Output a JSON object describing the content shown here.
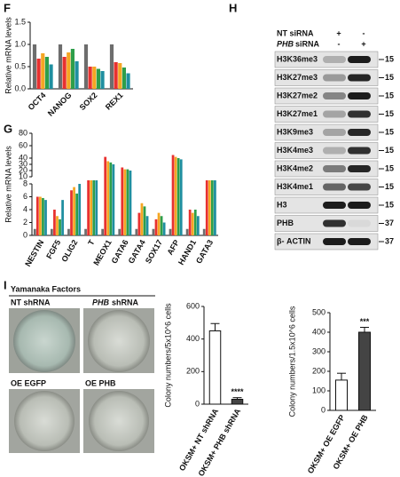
{
  "panel_labels": [
    "F",
    "G",
    "H",
    "I"
  ],
  "chart_data": [
    {
      "type": "bar",
      "y_label": "Relative mRNA levels",
      "categories": [
        "OCT4",
        "NANOG",
        "SOX2",
        "REX1"
      ],
      "series": [
        {
          "color": "#6d6d6d",
          "values": [
            1.0,
            1.0,
            1.0,
            1.0
          ]
        },
        {
          "color": "#e8312f",
          "values": [
            0.68,
            0.72,
            0.5,
            0.6
          ]
        },
        {
          "color": "#f5a623",
          "values": [
            0.8,
            0.82,
            0.5,
            0.58
          ]
        },
        {
          "color": "#2e9e4a",
          "values": [
            0.72,
            0.9,
            0.45,
            0.48
          ]
        },
        {
          "color": "#1f8fa0",
          "values": [
            0.55,
            0.62,
            0.4,
            0.35
          ]
        }
      ],
      "ylim": [
        0,
        1.5
      ],
      "yticks": [
        {
          "value": 0,
          "label": "0.0"
        },
        0.5,
        {
          "value": 1,
          "label": "1.0"
        },
        1.5
      ]
    },
    {
      "type": "bar",
      "y_label": "Relative mRNA levels",
      "categories": [
        "NESTIN",
        "FGF5",
        "OLIG2",
        "T",
        "MEOX1",
        "GATA6",
        "GATA4",
        "SOX17",
        "AFP",
        "HAND1",
        "GATA3"
      ],
      "series": [
        {
          "color": "#6d6d6d",
          "values": [
            1,
            1,
            1,
            1,
            1,
            1,
            1,
            1,
            1,
            1,
            1
          ]
        },
        {
          "color": "#e8312f",
          "values": [
            6,
            4,
            7,
            9,
            42,
            25,
            3.5,
            2.5,
            45,
            4,
            9
          ]
        },
        {
          "color": "#f5a623",
          "values": [
            6,
            3,
            7.5,
            9,
            35,
            22,
            5,
            3.5,
            42,
            3.5,
            9
          ]
        },
        {
          "color": "#2e9e4a",
          "values": [
            5.8,
            2.5,
            6.5,
            9,
            33,
            22,
            4.5,
            3,
            40,
            4,
            9
          ]
        },
        {
          "color": "#1f8fa0",
          "values": [
            5.5,
            5.5,
            8,
            9,
            30,
            20,
            3,
            2,
            38,
            3,
            9
          ]
        }
      ],
      "ylim": [
        0,
        80
      ],
      "yticks": [
        0,
        2,
        4,
        6,
        8,
        10,
        20,
        30,
        40,
        60,
        80
      ],
      "axis_break": [
        8,
        10
      ]
    },
    {
      "type": "bar",
      "y_label": "Colony numbers/5x10^6 cells",
      "categories": [
        "OKSM+ NT shRNA",
        "OKSM+ PHB shRNA"
      ],
      "values": [
        450,
        30
      ],
      "errors": [
        45,
        10
      ],
      "colors": [
        "#ffffff",
        "#444444"
      ],
      "annotation": "****",
      "ylim": [
        0,
        600
      ],
      "yticks": [
        0,
        200,
        400,
        600
      ]
    },
    {
      "type": "bar",
      "y_label": "Colony numbers/1.5x10^6 cells",
      "categories": [
        "OKSM+ OE EGFP",
        "OKSM+ OE PHB"
      ],
      "values": [
        155,
        400
      ],
      "errors": [
        35,
        25
      ],
      "colors": [
        "#ffffff",
        "#444444"
      ],
      "annotation": "***",
      "ylim": [
        0,
        500
      ],
      "yticks": [
        0,
        100,
        200,
        300,
        400,
        500
      ]
    }
  ],
  "blot": {
    "conditions": [
      {
        "label": "NT siRNA",
        "lanes": [
          "+",
          "-"
        ]
      },
      {
        "gene": "PHB",
        "label": "siRNA",
        "lanes": [
          "-",
          "+"
        ]
      }
    ],
    "rows": [
      {
        "label": "H3K36me3",
        "marker": "15"
      },
      {
        "label": "H3K27me3",
        "marker": "15"
      },
      {
        "label": "H3K27me2",
        "marker": "15"
      },
      {
        "label": "H3K27me1",
        "marker": "15"
      },
      {
        "label": "H3K9me3",
        "marker": "15"
      },
      {
        "label": "H3K4me3",
        "marker": "15"
      },
      {
        "label": "H3K4me2",
        "marker": "15"
      },
      {
        "label": "H3K4me1",
        "marker": "15"
      },
      {
        "label": "H3",
        "marker": "15"
      },
      {
        "label": "PHB",
        "marker": "37"
      },
      {
        "label": "β- ACTIN",
        "marker": "37"
      }
    ]
  },
  "images": {
    "title": "Yamanaka Factors",
    "panels": [
      {
        "label": "NT shRNA"
      },
      {
        "gene": "PHB",
        "label": "shRNA"
      },
      {
        "label": "OE EGFP"
      },
      {
        "label": "OE PHB"
      }
    ]
  }
}
